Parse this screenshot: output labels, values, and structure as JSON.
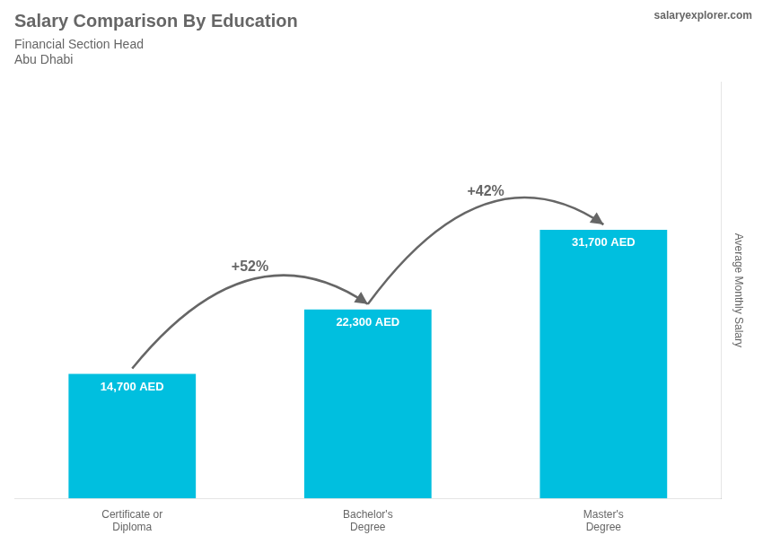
{
  "chart_data": {
    "type": "bar",
    "title": "Salary Comparison By Education",
    "subtitle": [
      "Financial Section Head",
      "Abu Dhabi"
    ],
    "source": "salaryexplorer.com",
    "ylabel": "Average Monthly Salary",
    "categories": [
      "Certificate or\nDiploma",
      "Bachelor's\nDegree",
      "Master's\nDegree"
    ],
    "values": [
      14700,
      22300,
      31700
    ],
    "value_labels": [
      "14,700 AED",
      "22,300 AED",
      "31,700 AED"
    ],
    "data_labels": true,
    "annotations": [
      "+52%",
      "+42%"
    ],
    "color": "#00BFDF",
    "ylim": [
      0,
      49135
    ],
    "grid": false,
    "tick_labels": "x"
  }
}
